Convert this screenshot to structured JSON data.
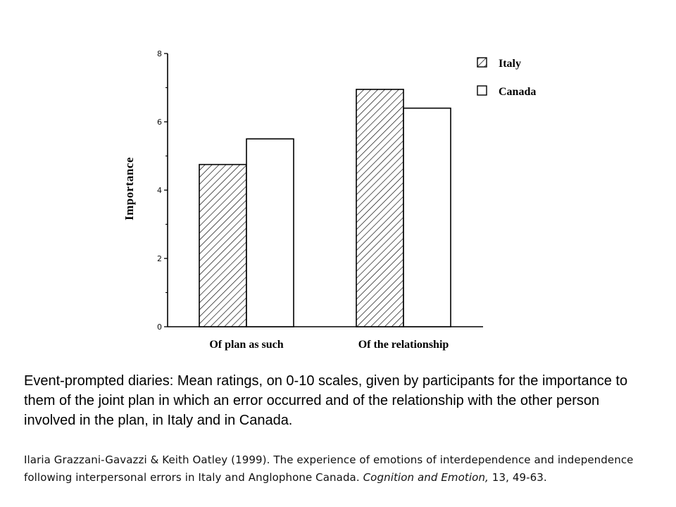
{
  "chart_data": {
    "type": "bar",
    "categories": [
      "Of plan as such",
      "Of the relationship"
    ],
    "series": [
      {
        "name": "Italy",
        "values": [
          4.75,
          6.95
        ],
        "pattern": "hatched"
      },
      {
        "name": "Canada",
        "values": [
          5.5,
          6.4
        ],
        "pattern": "open"
      }
    ],
    "ylabel": "Importance",
    "xlabel": "",
    "ylim": [
      0,
      8
    ],
    "yticks": [
      "0",
      "2",
      "4",
      "6",
      "8"
    ],
    "legend_position": "top-right",
    "grid": false,
    "colors": {
      "stroke": "#000000",
      "fill": "#ffffff"
    }
  },
  "caption": "Event-prompted diaries: Mean ratings, on 0-10 scales, given by participants for the importance to them of the joint plan in which an error occurred and of the relationship with the other person involved in the plan, in Italy and in Canada.",
  "citation": {
    "authors_text": "Ilaria Grazzani-Gavazzi & Keith Oatley (1999). The experience of emotions of interdependence and independence following interpersonal errors in Italy and Anglophone Canada.",
    "journal": "Cognition and Emotion,",
    "volume_pages": "13, 49-63."
  }
}
